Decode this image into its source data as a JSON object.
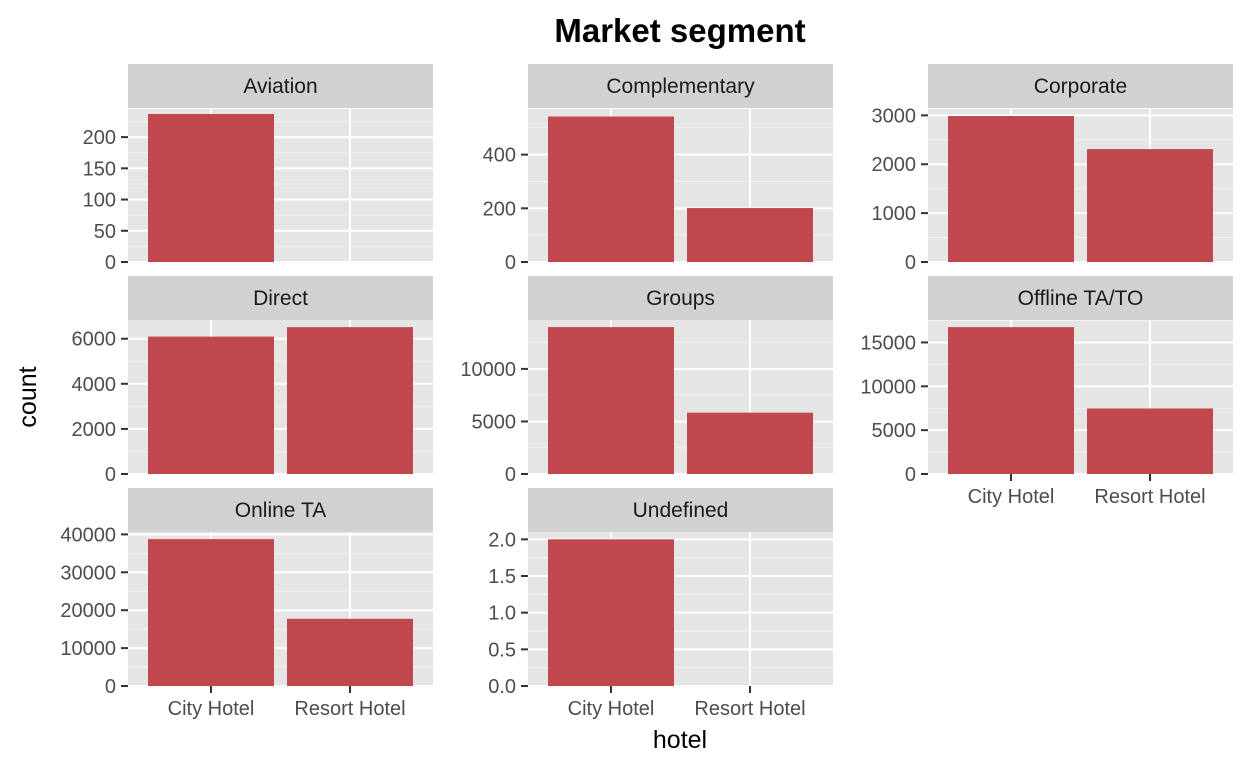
{
  "chart_data": {
    "type": "bar",
    "title": "Market segment",
    "xlabel": "hotel",
    "ylabel": "count",
    "categories": [
      "City Hotel",
      "Resort Hotel"
    ],
    "bar_color": "#c0474c",
    "panel_background": "#e5e5e5",
    "strip_background": "#d1d1d1",
    "grid": true,
    "facets": [
      {
        "name": "Aviation",
        "values": [
          237,
          0
        ],
        "ylim": [
          0,
          245
        ],
        "ticks": [
          0,
          50,
          100,
          150,
          200
        ],
        "tick_labels": [
          "0",
          "50",
          "100",
          "150",
          "200"
        ]
      },
      {
        "name": "Complementary",
        "values": [
          542,
          201
        ],
        "ylim": [
          0,
          570
        ],
        "ticks": [
          0,
          200,
          400
        ],
        "tick_labels": [
          "0",
          "200",
          "400"
        ]
      },
      {
        "name": "Corporate",
        "values": [
          2986,
          2309
        ],
        "ylim": [
          0,
          3130
        ],
        "ticks": [
          0,
          1000,
          2000,
          3000
        ],
        "tick_labels": [
          "0",
          "1000",
          "2000",
          "3000"
        ]
      },
      {
        "name": "Direct",
        "values": [
          6093,
          6513
        ],
        "ylim": [
          0,
          6830
        ],
        "ticks": [
          0,
          2000,
          4000,
          6000
        ],
        "tick_labels": [
          "0",
          "2000",
          "4000",
          "6000"
        ]
      },
      {
        "name": "Groups",
        "values": [
          13975,
          5836
        ],
        "ylim": [
          0,
          14650
        ],
        "ticks": [
          0,
          5000,
          10000
        ],
        "tick_labels": [
          "0",
          "5000",
          "10000"
        ]
      },
      {
        "name": "Offline TA/TO",
        "values": [
          16747,
          7472
        ],
        "ylim": [
          0,
          17560
        ],
        "ticks": [
          0,
          5000,
          10000,
          15000
        ],
        "tick_labels": [
          "0",
          "5000",
          "10000",
          "15000"
        ]
      },
      {
        "name": "Online TA",
        "values": [
          38748,
          17729
        ],
        "ylim": [
          0,
          40630
        ],
        "ticks": [
          0,
          10000,
          20000,
          30000,
          40000
        ],
        "tick_labels": [
          "0",
          "10000",
          "20000",
          "30000",
          "40000"
        ]
      },
      {
        "name": "Undefined",
        "values": [
          2,
          0
        ],
        "ylim": [
          0,
          2.1
        ],
        "ticks": [
          0,
          0.5,
          1,
          1.5,
          2
        ],
        "tick_labels": [
          "0.0",
          "0.5",
          "1.0",
          "1.5",
          "2.0"
        ]
      }
    ]
  }
}
